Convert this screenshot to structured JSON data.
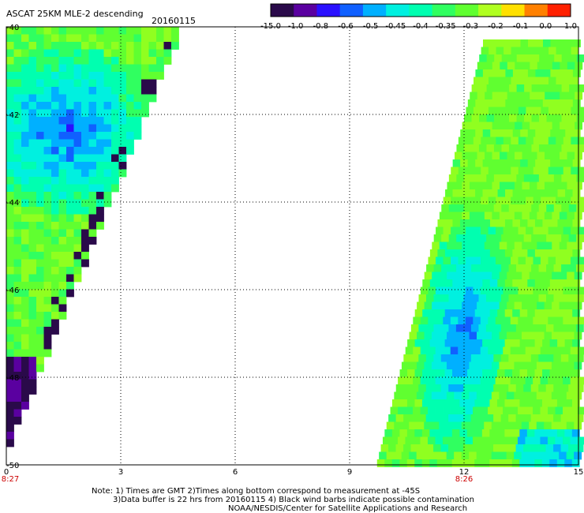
{
  "header": {
    "title": "ASCAT 25KM MLE-2 descending",
    "date": "20160115"
  },
  "colorbar": {
    "labels": [
      "-15.0",
      "-1.0",
      "-0.8",
      "-0.6",
      "-0.5",
      "-0.45",
      "-0.4",
      "-0.35",
      "-0.3",
      "-0.2",
      "-0.1",
      "0.0",
      "1.0"
    ],
    "colors": [
      "#2a0a4a",
      "#5a00a0",
      "#2a10ff",
      "#1060ff",
      "#00b0ff",
      "#00f0e0",
      "#00ffb0",
      "#30ff60",
      "#60ff30",
      "#b0ff20",
      "#ffe000",
      "#ff8000",
      "#ff2000"
    ]
  },
  "axes": {
    "y_labels": [
      "-40",
      "-42",
      "-44",
      "-46",
      "-48",
      "-50"
    ],
    "x_labels": [
      "0",
      "3",
      "6",
      "9",
      "12",
      "15"
    ],
    "x_time_labels": [
      {
        "at": "0",
        "text": "8:27"
      },
      {
        "at": "12",
        "text": "8:26"
      }
    ],
    "time_label_color": "#cc0000"
  },
  "map": {
    "lat_range": [
      -50,
      -40
    ],
    "lon_range": [
      0,
      15
    ],
    "swaths": [
      {
        "name": "west swath",
        "dominant": "green/cyan",
        "low_region": "blue/purple near -42 to -44"
      },
      {
        "name": "east swath",
        "dominant": "green",
        "low_region": "blue band along -45 to -49"
      }
    ]
  },
  "footer": {
    "line1": "Note: 1) Times are GMT 2)Times along bottom correspond to measurement at -45S",
    "line2": "3)Data buffer is 22 hrs from 20160115 4) Black wind barbs indicate possible contamination",
    "line3": "NOAA/NESDIS/Center for Satellite Applications and Research"
  }
}
